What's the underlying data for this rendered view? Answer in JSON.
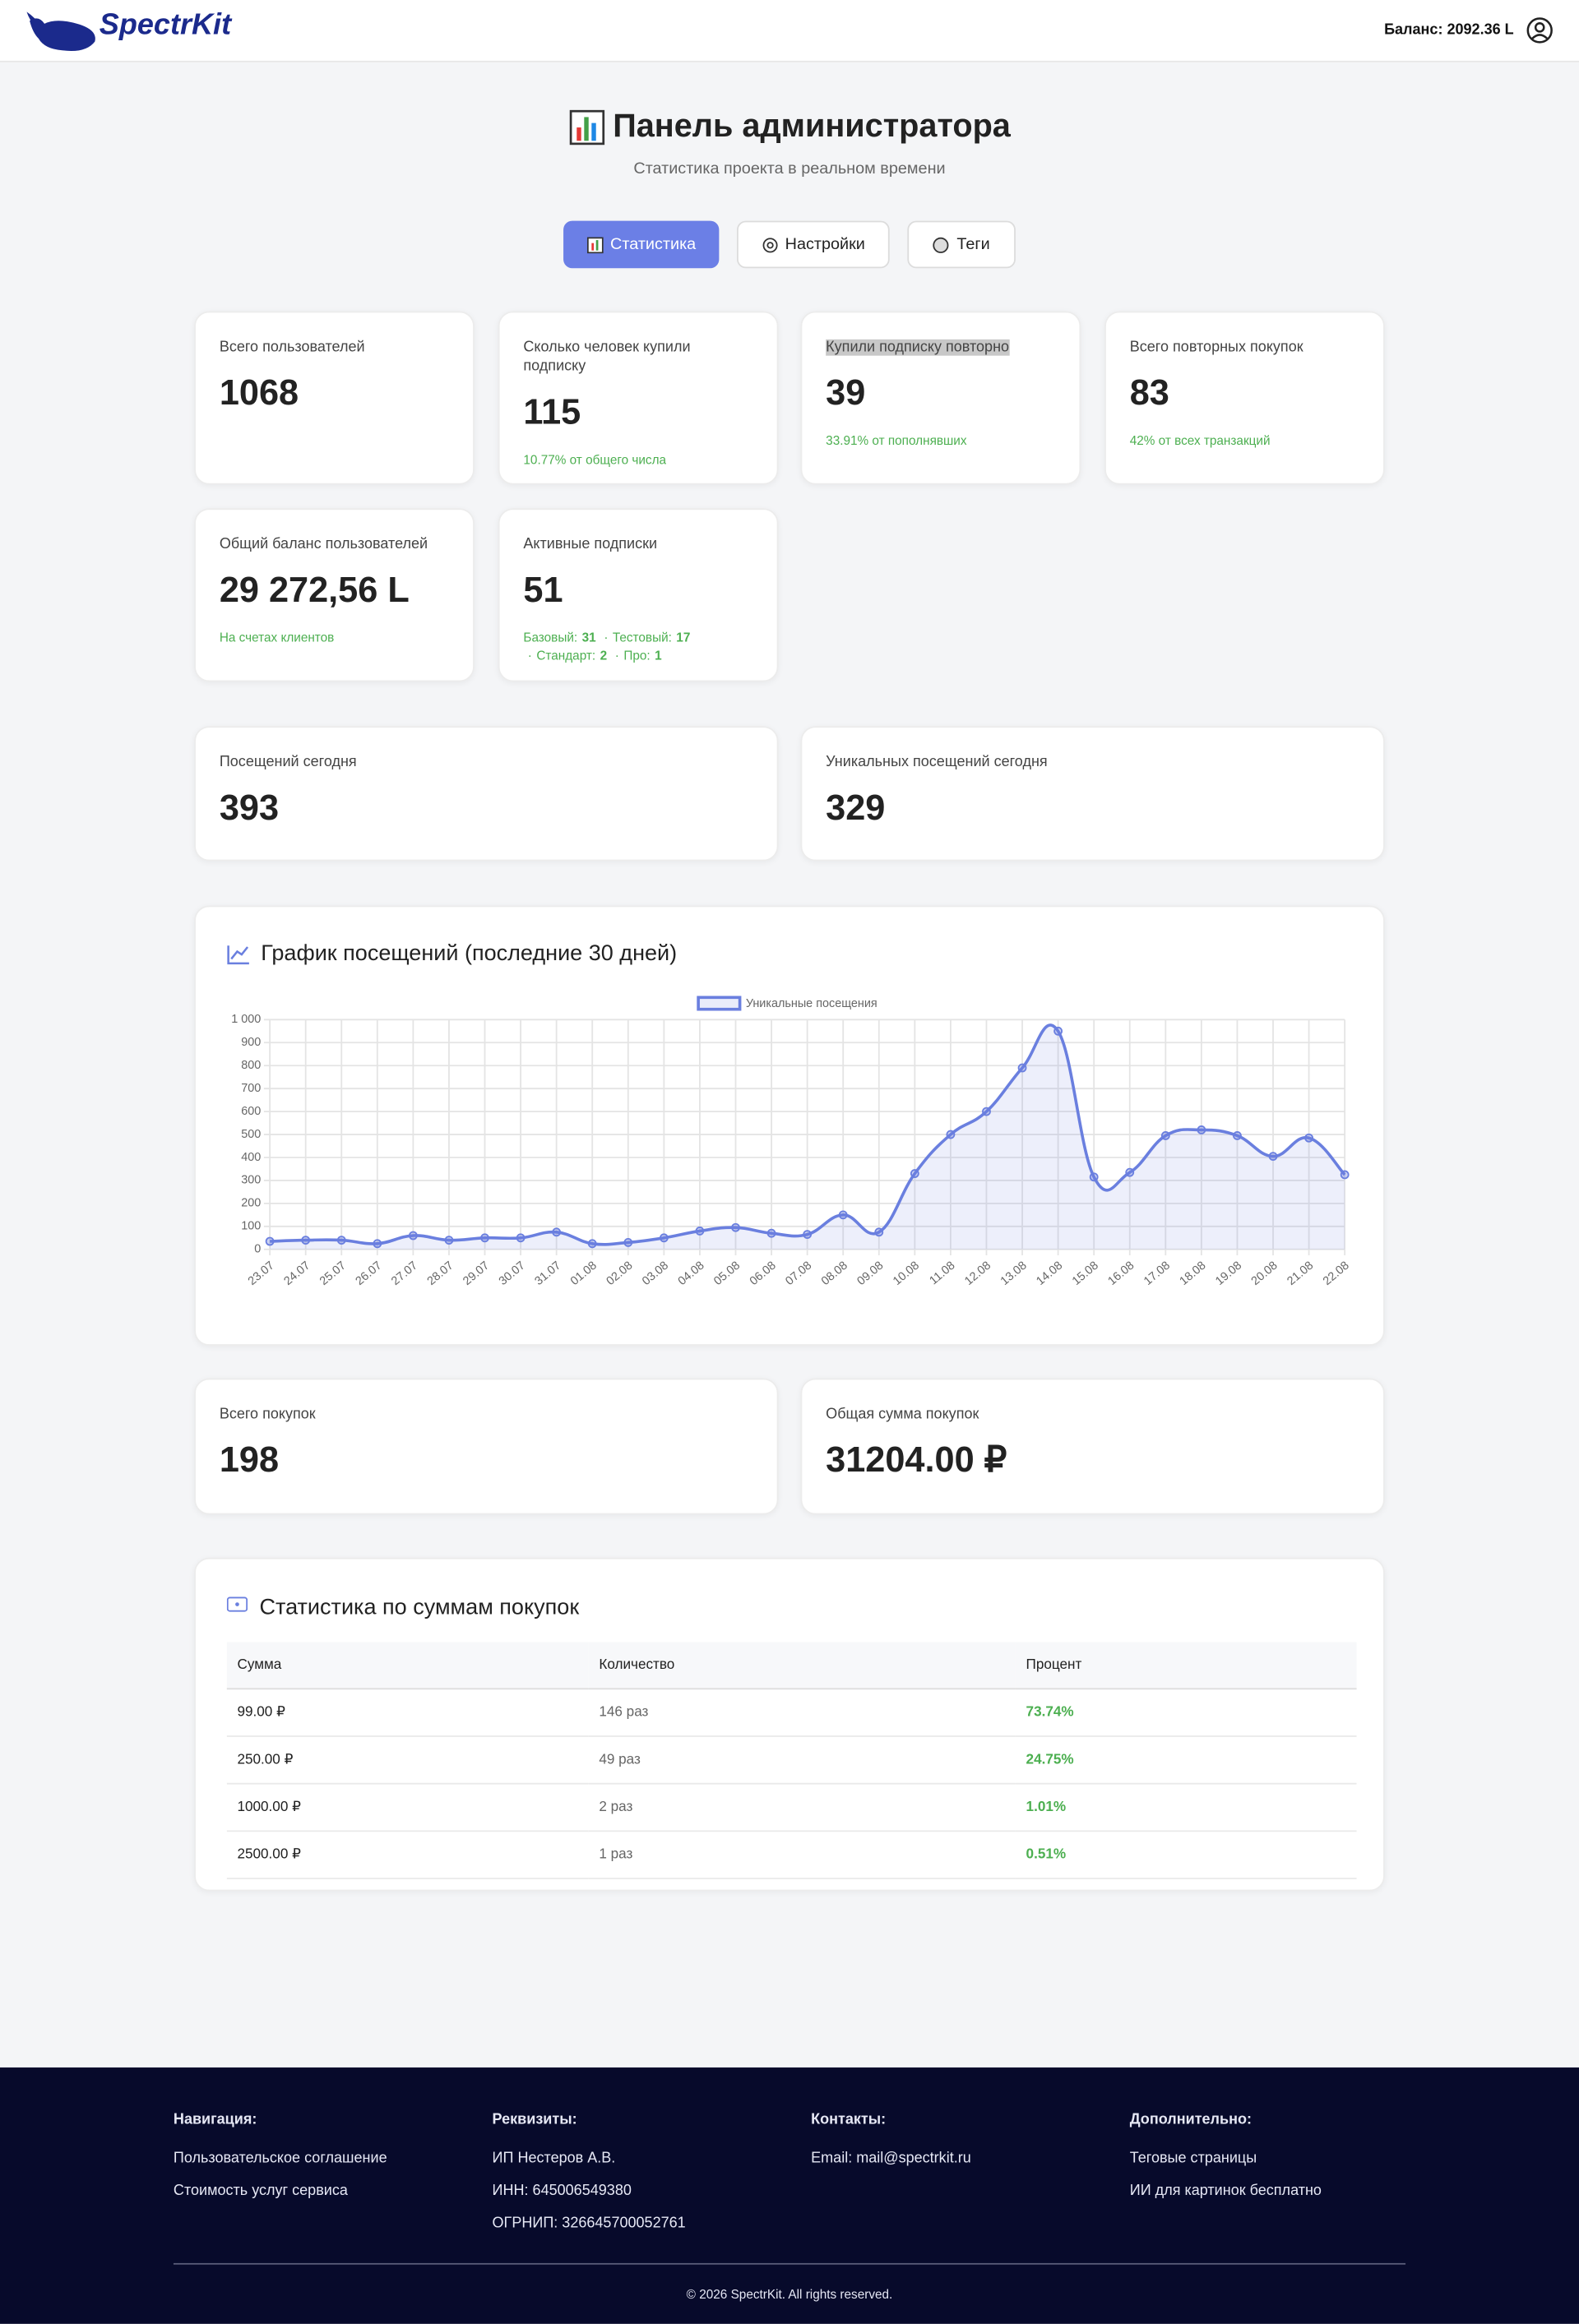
{
  "header": {
    "logo": "SpectrKit",
    "balance": "Баланс: 2092.36 L"
  },
  "page": {
    "title": "Панель администратора",
    "subtitle": "Статистика проекта в реальном времени"
  },
  "tabs": [
    "Статистика",
    "Настройки",
    "Теги"
  ],
  "stats": [
    {
      "label": "Всего пользователей",
      "value": 1068
    },
    {
      "label": "Сколько человек купили подписку",
      "value": 115,
      "note": "10.77% от общего числа"
    },
    {
      "label": "Купили подписку повторно",
      "value": 39,
      "note": "33.91% от пополнявших"
    },
    {
      "label": "Всего повторных покупок",
      "value": 83,
      "note": "42% от всех транзакций"
    },
    {
      "label": "Общий баланс пользователей",
      "value": "29 272,56 L",
      "note": "На счетах клиентов"
    },
    {
      "label": "Активные подписки",
      "value": 51,
      "breakdown": [
        {
          "name": "Базовый:",
          "count": 31
        },
        {
          "name": "Тестовый:",
          "count": 17
        },
        {
          "name": "Стандарт:",
          "count": 2
        },
        {
          "name": "Про:",
          "count": 1
        }
      ],
      "separator": "·"
    }
  ],
  "visits": [
    {
      "label": "Посещений сегодня",
      "value": 393
    },
    {
      "label": "Уникальных посещений сегодня",
      "value": 329
    }
  ],
  "chart_data": {
    "type": "line",
    "title": "График посещений (последние 30 дней)",
    "categories": [
      "23.07",
      "24.07",
      "25.07",
      "26.07",
      "27.07",
      "28.07",
      "29.07",
      "30.07",
      "31.07",
      "01.08",
      "02.08",
      "03.08",
      "04.08",
      "05.08",
      "06.08",
      "07.08",
      "08.08",
      "09.08",
      "10.08",
      "11.08",
      "12.08",
      "13.08",
      "14.08",
      "15.08",
      "16.08",
      "17.08",
      "18.08",
      "19.08",
      "20.08",
      "21.08",
      "22.08"
    ],
    "series": [
      {
        "name": "Уникальные посещения",
        "color": "#6a7fdf",
        "values": [
          35,
          40,
          40,
          25,
          60,
          40,
          50,
          50,
          75,
          25,
          30,
          50,
          80,
          95,
          70,
          65,
          150,
          75,
          330,
          500,
          600,
          790,
          950,
          315,
          335,
          495,
          520,
          495,
          405,
          485,
          325
        ]
      }
    ],
    "ylim": [
      0,
      1000
    ],
    "yticks": [
      0,
      100,
      200,
      300,
      400,
      500,
      600,
      700,
      800,
      900,
      {
        "value": 1000,
        "label": "1 000"
      }
    ],
    "grid": true,
    "fill": true,
    "legend": "top"
  },
  "purchases": [
    {
      "label": "Всего покупок",
      "value": 198
    },
    {
      "label": "Общая сумма покупок",
      "value": "31204.00 ₽"
    }
  ],
  "purchase_table": {
    "title": "Статистика по суммам покупок",
    "columns": [
      "Сумма",
      "Количество",
      "Процент"
    ],
    "rows": [
      [
        "99.00 ₽",
        "146 раз",
        "73.74%"
      ],
      [
        "250.00 ₽",
        "49 раз",
        "24.75%"
      ],
      [
        "1000.00 ₽",
        "2 раз",
        "1.01%"
      ],
      [
        "2500.00 ₽",
        "1 раз",
        "0.51%"
      ]
    ]
  },
  "footer": {
    "columns": [
      {
        "title": "Навигация:",
        "items": [
          "Пользовательское соглашение",
          "Стоимость услуг сервиса"
        ]
      },
      {
        "title": "Реквизиты:",
        "items": [
          "ИП Нестеров А.В.",
          "ИНН: 645006549380",
          "ОГРНИП: 326645700052761"
        ]
      },
      {
        "title": "Контакты:",
        "items": [
          "Email: mail@spectrkit.ru"
        ]
      },
      {
        "title": "Дополнительно:",
        "items": [
          "Теговые страницы",
          "ИИ для картинок бесплатно"
        ]
      }
    ],
    "copyright": "© 2026 SpectrKit. All rights reserved."
  }
}
